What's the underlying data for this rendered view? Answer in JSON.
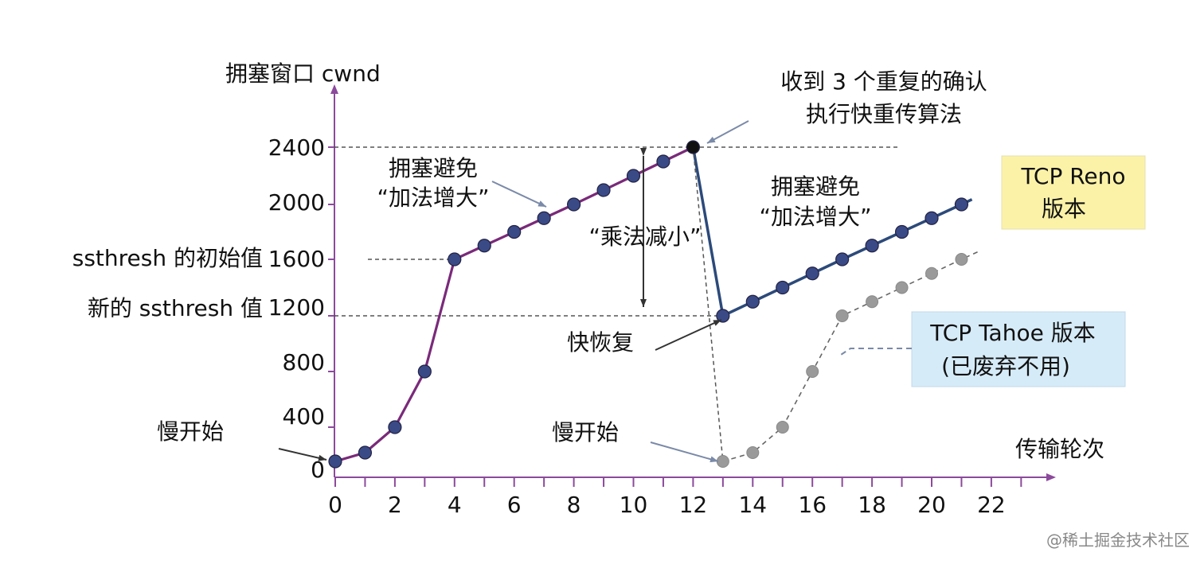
{
  "chart_data": {
    "type": "line",
    "ylabel": "拥塞窗口 cwnd",
    "xlabel": "传输轮次",
    "x_ticks": [
      0,
      2,
      4,
      6,
      8,
      10,
      12,
      14,
      16,
      18,
      20,
      22
    ],
    "y_ticks": [
      0,
      400,
      800,
      1200,
      1600,
      2000,
      2400
    ],
    "xlim": [
      0,
      22
    ],
    "ylim": [
      0,
      2400
    ],
    "grid": false,
    "series": [
      {
        "name": "TCP Reno 版本",
        "phase_1": {
          "x": [
            0,
            1,
            2,
            3,
            4,
            5,
            6,
            7,
            8,
            9,
            10,
            11,
            12
          ],
          "y": [
            100,
            200,
            400,
            800,
            1600,
            1700,
            1800,
            1900,
            2000,
            2100,
            2200,
            2300,
            2400
          ]
        },
        "phase_2": {
          "x": [
            13,
            14,
            15,
            16,
            17,
            18,
            19,
            20,
            21
          ],
          "y": [
            1200,
            1300,
            1400,
            1500,
            1600,
            1700,
            1800,
            1900,
            2000
          ]
        }
      },
      {
        "name": "TCP Tahoe 版本 (已废弃不用)",
        "x": [
          13,
          14,
          15,
          16,
          17,
          18,
          19,
          20,
          21
        ],
        "y": [
          100,
          200,
          400,
          800,
          1200,
          1300,
          1400,
          1500,
          1600
        ]
      }
    ],
    "reference_lines": [
      {
        "y": 2400,
        "label": ""
      },
      {
        "y": 1600,
        "label": "ssthresh 的初始值"
      },
      {
        "y": 1200,
        "label": "新的 ssthresh 值"
      }
    ],
    "annotations": {
      "slow_start_1": "慢开始",
      "slow_start_2": "慢开始",
      "ca_1_line1": "拥塞避免",
      "ca_1_line2": "“加法增大”",
      "ca_2_line1": "拥塞避免",
      "ca_2_line2": "“加法增大”",
      "multiplicative_decrease": "“乘法减小”",
      "fast_recovery": "快恢复",
      "three_dup_ack_line1": "收到 3 个重复的确认",
      "three_dup_ack_line2": "执行快重传算法",
      "reno_box_line1": "TCP Reno",
      "reno_box_line2": "版本",
      "tahoe_box_line1": "TCP Tahoe 版本",
      "tahoe_box_line2": "(已废弃不用)"
    },
    "colors": {
      "slow_start_phase": "#7a2a7a",
      "reno_after_loss": "#2c4a7a",
      "tahoe": "#8c8c8c",
      "axis": "#8c4a9c",
      "reno_box": "#fbf2a8",
      "tahoe_box": "#d6ebf8"
    }
  },
  "watermark": "@稀土掘金技术社区"
}
